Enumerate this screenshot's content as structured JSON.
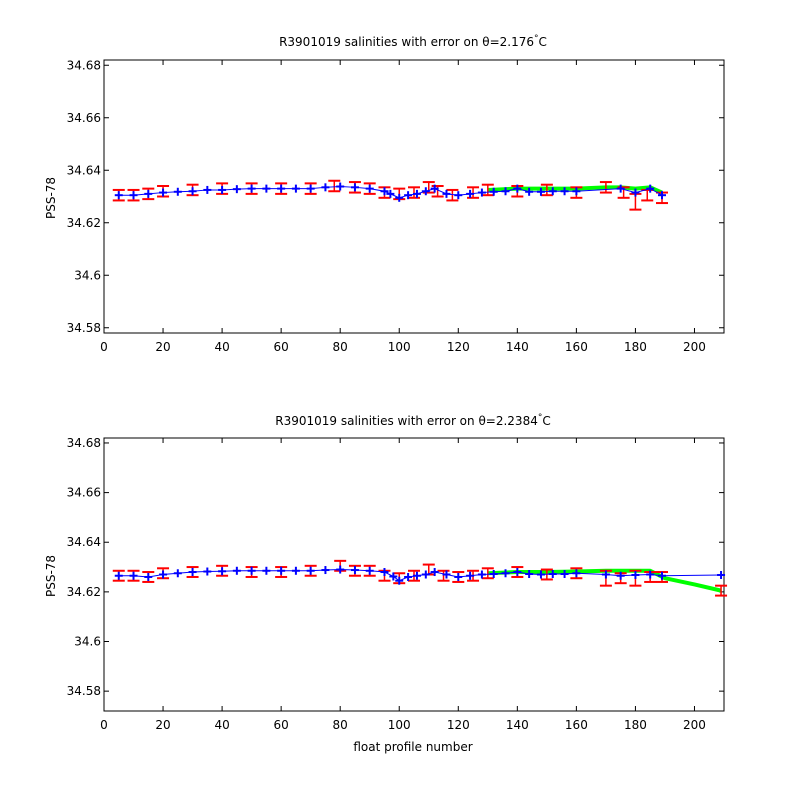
{
  "figure": {
    "background": "#ffffff"
  },
  "chart_data": [
    {
      "type": "line",
      "title": "R3901019 salinities with error on θ=2.176",
      "title_unit": "°C",
      "xlabel": "",
      "ylabel": "PSS-78",
      "xlim": [
        0,
        210
      ],
      "ylim": [
        34.578,
        34.682
      ],
      "xticks": [
        "0",
        "20",
        "40",
        "60",
        "80",
        "100",
        "120",
        "140",
        "160",
        "180",
        "200"
      ],
      "yticks": [
        "34.58",
        "34.6",
        "34.62",
        "34.64",
        "34.66",
        "34.68"
      ],
      "grid": false,
      "legend": "none",
      "colors": {
        "error_bars": "#ff0000",
        "float_points": "#0000ff",
        "mapped_line": "#00ff00"
      },
      "series": [
        {
          "style": "red error bars",
          "x": [
            5,
            10,
            15,
            20,
            30,
            40,
            50,
            60,
            70,
            78,
            85,
            90,
            95,
            100,
            105,
            110,
            113,
            118,
            125,
            130,
            140,
            150,
            160,
            170,
            176,
            180,
            184,
            189
          ],
          "values": [
            34.6305,
            34.6305,
            34.631,
            34.632,
            34.6325,
            34.633,
            34.633,
            34.633,
            34.633,
            34.634,
            34.6335,
            34.633,
            34.6315,
            34.631,
            34.6315,
            34.6335,
            34.632,
            34.6305,
            34.6315,
            34.6325,
            34.632,
            34.6325,
            34.6315,
            34.6335,
            34.6315,
            34.628,
            34.6305,
            34.6295
          ],
          "err": [
            0.002,
            0.002,
            0.002,
            0.002,
            0.002,
            0.002,
            0.002,
            0.002,
            0.002,
            0.002,
            0.002,
            0.002,
            0.002,
            0.002,
            0.002,
            0.002,
            0.002,
            0.002,
            0.002,
            0.002,
            0.002,
            0.002,
            0.002,
            0.002,
            0.002,
            0.003,
            0.002,
            0.002
          ]
        },
        {
          "style": "blue points",
          "x": [
            5,
            10,
            15,
            20,
            25,
            30,
            35,
            40,
            45,
            50,
            55,
            60,
            65,
            70,
            75,
            80,
            85,
            90,
            95,
            97,
            100,
            103,
            106,
            109,
            112,
            116,
            120,
            124,
            128,
            132,
            136,
            140,
            144,
            148,
            152,
            156,
            160,
            175,
            180,
            185,
            189
          ],
          "values": [
            34.6305,
            34.6305,
            34.631,
            34.6315,
            34.6318,
            34.632,
            34.6325,
            34.6325,
            34.6328,
            34.633,
            34.633,
            34.633,
            34.633,
            34.633,
            34.6335,
            34.6338,
            34.6335,
            34.633,
            34.632,
            34.631,
            34.6295,
            34.6305,
            34.631,
            34.632,
            34.633,
            34.631,
            34.6305,
            34.631,
            34.6315,
            34.6318,
            34.632,
            34.633,
            34.6318,
            34.6318,
            34.632,
            34.632,
            34.632,
            34.633,
            34.6315,
            34.633,
            34.6305
          ]
        },
        {
          "style": "green line",
          "x": [
            130,
            140,
            150,
            160,
            170,
            175,
            180,
            185,
            189
          ],
          "values": [
            34.6325,
            34.633,
            34.633,
            34.633,
            34.6335,
            34.6335,
            34.633,
            34.6335,
            34.6315
          ]
        }
      ]
    },
    {
      "type": "line",
      "title": "R3901019 salinities with error on θ=2.2384",
      "title_unit": "°C",
      "xlabel": "float profile number",
      "ylabel": "PSS-78",
      "xlim": [
        0,
        210
      ],
      "ylim": [
        34.572,
        34.682
      ],
      "xticks": [
        "0",
        "20",
        "40",
        "60",
        "80",
        "100",
        "120",
        "140",
        "160",
        "180",
        "200"
      ],
      "yticks": [
        "34.58",
        "34.6",
        "34.62",
        "34.64",
        "34.66",
        "34.68"
      ],
      "grid": false,
      "legend": "none",
      "colors": {
        "error_bars": "#ff0000",
        "float_points": "#0000ff",
        "mapped_line": "#00ff00"
      },
      "series": [
        {
          "style": "red error bars",
          "x": [
            5,
            10,
            15,
            20,
            30,
            40,
            50,
            60,
            70,
            80,
            85,
            90,
            95,
            100,
            105,
            110,
            115,
            120,
            125,
            130,
            140,
            150,
            160,
            170,
            175,
            180,
            185,
            189,
            209
          ],
          "values": [
            34.6265,
            34.6265,
            34.626,
            34.6275,
            34.628,
            34.6285,
            34.628,
            34.628,
            34.6285,
            34.6305,
            34.6285,
            34.6285,
            34.6265,
            34.6255,
            34.6265,
            34.629,
            34.6265,
            34.626,
            34.6265,
            34.6275,
            34.628,
            34.627,
            34.6275,
            34.6255,
            34.6255,
            34.6255,
            34.626,
            34.626,
            34.6205
          ],
          "err": [
            0.002,
            0.002,
            0.002,
            0.002,
            0.002,
            0.002,
            0.002,
            0.002,
            0.002,
            0.002,
            0.002,
            0.002,
            0.002,
            0.002,
            0.002,
            0.002,
            0.002,
            0.002,
            0.002,
            0.002,
            0.002,
            0.002,
            0.002,
            0.003,
            0.002,
            0.003,
            0.002,
            0.002,
            0.002
          ]
        },
        {
          "style": "blue points",
          "x": [
            5,
            10,
            15,
            20,
            25,
            30,
            35,
            40,
            45,
            50,
            55,
            60,
            65,
            70,
            75,
            80,
            85,
            90,
            95,
            98,
            100,
            103,
            106,
            109,
            112,
            116,
            120,
            124,
            128,
            132,
            136,
            140,
            144,
            148,
            152,
            156,
            160,
            170,
            175,
            180,
            185,
            189,
            209
          ],
          "values": [
            34.6265,
            34.6265,
            34.626,
            34.627,
            34.6275,
            34.628,
            34.6282,
            34.6283,
            34.6285,
            34.6285,
            34.6285,
            34.6285,
            34.6285,
            34.6285,
            34.6288,
            34.629,
            34.6288,
            34.6285,
            34.628,
            34.6262,
            34.6245,
            34.626,
            34.6265,
            34.627,
            34.628,
            34.627,
            34.626,
            34.6265,
            34.627,
            34.6272,
            34.6275,
            34.628,
            34.6272,
            34.627,
            34.6272,
            34.6272,
            34.6275,
            34.627,
            34.6265,
            34.6268,
            34.627,
            34.6265,
            34.6268
          ]
        },
        {
          "style": "green line",
          "x": [
            130,
            140,
            150,
            160,
            170,
            175,
            180,
            185,
            190,
            200,
            209
          ],
          "values": [
            34.6275,
            34.628,
            34.628,
            34.6282,
            34.6285,
            34.6285,
            34.6285,
            34.6285,
            34.6255,
            34.623,
            34.6205
          ]
        }
      ]
    }
  ]
}
